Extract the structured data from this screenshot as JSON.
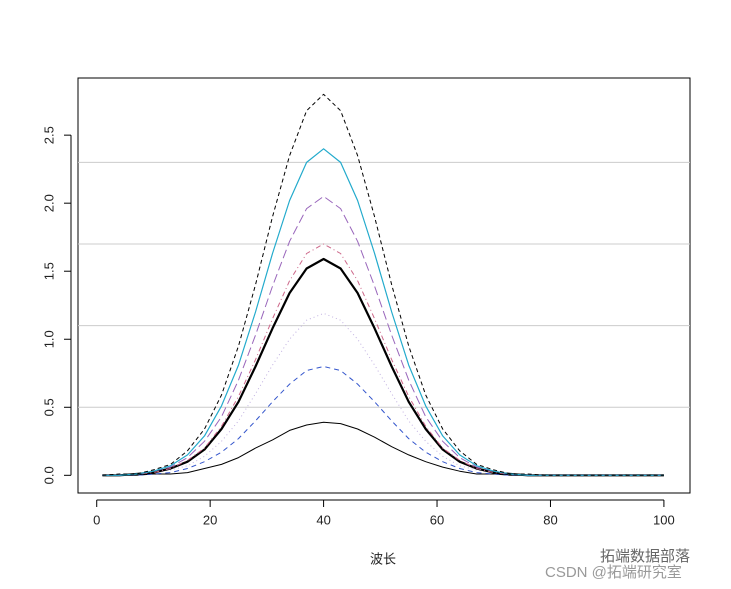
{
  "chart_data": {
    "type": "line",
    "xlabel": "波长",
    "x": [
      1,
      4,
      7,
      10,
      13,
      16,
      19,
      22,
      25,
      28,
      31,
      34,
      37,
      40,
      43,
      46,
      49,
      52,
      55,
      58,
      61,
      64,
      67,
      70,
      73,
      76,
      79,
      82,
      85,
      88,
      91,
      94,
      97,
      100
    ],
    "series": [
      {
        "color": "#000000",
        "width": 1,
        "dash": "none",
        "values": [
          0,
          0,
          0,
          0.01,
          0.01,
          0.02,
          0.05,
          0.08,
          0.13,
          0.2,
          0.26,
          0.33,
          0.37,
          0.39,
          0.38,
          0.34,
          0.28,
          0.21,
          0.15,
          0.1,
          0.06,
          0.03,
          0.01,
          0.01,
          0,
          0,
          0,
          0,
          0,
          0,
          0,
          0,
          0,
          0
        ]
      },
      {
        "color": "#3355cc",
        "width": 1,
        "dash": "5 4",
        "values": [
          0,
          0,
          0,
          0.01,
          0.02,
          0.05,
          0.1,
          0.17,
          0.27,
          0.4,
          0.54,
          0.67,
          0.77,
          0.8,
          0.77,
          0.67,
          0.54,
          0.4,
          0.27,
          0.17,
          0.1,
          0.05,
          0.02,
          0.01,
          0,
          0,
          0,
          0,
          0,
          0,
          0,
          0,
          0,
          0
        ]
      },
      {
        "color": "#c0b0e0",
        "width": 1,
        "dash": "1 3",
        "values": [
          0,
          0,
          0.01,
          0.02,
          0.04,
          0.07,
          0.14,
          0.25,
          0.4,
          0.6,
          0.81,
          1.0,
          1.14,
          1.19,
          1.14,
          1.0,
          0.81,
          0.6,
          0.4,
          0.25,
          0.14,
          0.07,
          0.04,
          0.02,
          0.01,
          0,
          0,
          0,
          0,
          0,
          0,
          0,
          0,
          0
        ]
      },
      {
        "color": "#000000",
        "width": 2.2,
        "dash": "none",
        "values": [
          0,
          0,
          0.01,
          0.02,
          0.05,
          0.1,
          0.19,
          0.34,
          0.54,
          0.8,
          1.08,
          1.34,
          1.52,
          1.59,
          1.52,
          1.34,
          1.08,
          0.8,
          0.54,
          0.34,
          0.19,
          0.1,
          0.05,
          0.02,
          0.01,
          0,
          0,
          0,
          0,
          0,
          0,
          0,
          0,
          0
        ]
      },
      {
        "color": "#cc6688",
        "width": 1,
        "dash": "1 3 5 3",
        "values": [
          0,
          0,
          0.01,
          0.02,
          0.05,
          0.11,
          0.2,
          0.36,
          0.58,
          0.85,
          1.15,
          1.43,
          1.63,
          1.7,
          1.63,
          1.43,
          1.15,
          0.85,
          0.58,
          0.36,
          0.2,
          0.11,
          0.05,
          0.02,
          0.01,
          0,
          0,
          0,
          0,
          0,
          0,
          0,
          0,
          0
        ]
      },
      {
        "color": "#9966bb",
        "width": 1,
        "dash": "9 4",
        "values": [
          0,
          0,
          0.01,
          0.03,
          0.06,
          0.13,
          0.25,
          0.43,
          0.7,
          1.03,
          1.39,
          1.72,
          1.96,
          2.05,
          1.96,
          1.72,
          1.39,
          1.03,
          0.7,
          0.43,
          0.25,
          0.13,
          0.06,
          0.03,
          0.01,
          0,
          0,
          0,
          0,
          0,
          0,
          0,
          0,
          0
        ]
      },
      {
        "color": "#22aacc",
        "width": 1.2,
        "dash": "none",
        "values": [
          0,
          0,
          0.01,
          0.03,
          0.07,
          0.15,
          0.29,
          0.51,
          0.81,
          1.2,
          1.63,
          2.02,
          2.3,
          2.4,
          2.3,
          2.02,
          1.63,
          1.2,
          0.81,
          0.51,
          0.29,
          0.15,
          0.07,
          0.03,
          0.01,
          0,
          0,
          0,
          0,
          0,
          0,
          0,
          0,
          0
        ]
      },
      {
        "color": "#000000",
        "width": 1,
        "dash": "4 3",
        "values": [
          0,
          0.01,
          0.01,
          0.04,
          0.08,
          0.18,
          0.34,
          0.59,
          0.95,
          1.4,
          1.9,
          2.35,
          2.68,
          2.8,
          2.68,
          2.35,
          1.9,
          1.4,
          0.95,
          0.59,
          0.34,
          0.18,
          0.08,
          0.04,
          0.01,
          0.01,
          0,
          0,
          0,
          0,
          0,
          0,
          0,
          0
        ]
      }
    ],
    "xlim": [
      -3.3,
      104.6
    ],
    "ylim": [
      -0.13,
      2.92
    ],
    "xticks": [
      0,
      20,
      40,
      60,
      80,
      100
    ],
    "yticks": [
      {
        "value": 0,
        "label": "0.0"
      },
      0.5,
      {
        "value": 1,
        "label": "1.0"
      },
      1.5,
      {
        "value": 2,
        "label": "2.0"
      },
      2.5
    ],
    "hlines": [
      0.5,
      1.1,
      1.7,
      2.3
    ],
    "watermark": [
      "拓端数据部落",
      "CSDN @拓端研究室"
    ]
  }
}
